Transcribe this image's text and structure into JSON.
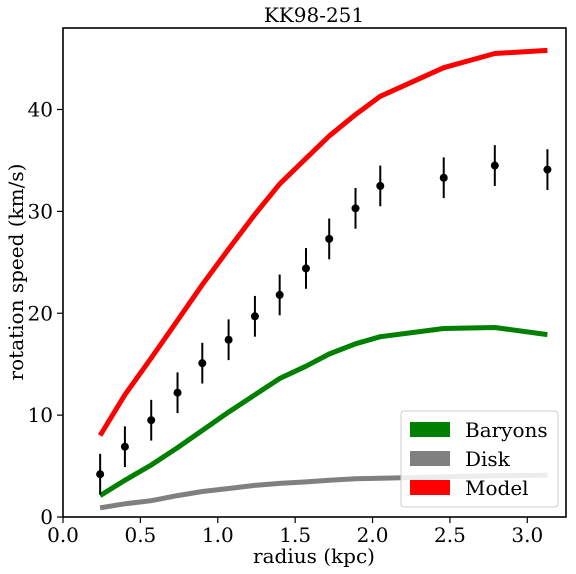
{
  "chart_data": {
    "type": "line",
    "title": "KK98-251",
    "xlabel": "radius (kpc)",
    "ylabel": "rotation speed (km/s)",
    "xlim": [
      0.0,
      3.25
    ],
    "ylim": [
      0,
      48
    ],
    "xticks": [
      "0.0",
      "0.5",
      "1.0",
      "1.5",
      "2.0",
      "2.5",
      "3.0"
    ],
    "yticks": [
      "0",
      "10",
      "20",
      "30",
      "40"
    ],
    "grid": false,
    "legend_position": "bottom-right",
    "series": [
      {
        "name": "Baryons",
        "color": "#008000",
        "x": [
          0.24,
          0.4,
          0.57,
          0.74,
          0.9,
          1.07,
          1.24,
          1.4,
          1.57,
          1.72,
          1.89,
          2.05,
          2.46,
          2.79,
          3.13
        ],
        "y": [
          2.1,
          3.6,
          5.1,
          6.8,
          8.5,
          10.3,
          12.0,
          13.6,
          14.8,
          16.0,
          17.0,
          17.7,
          18.5,
          18.6,
          17.9
        ]
      },
      {
        "name": "Disk",
        "color": "#808080",
        "x": [
          0.24,
          0.4,
          0.57,
          0.74,
          0.9,
          1.07,
          1.24,
          1.4,
          1.57,
          1.72,
          1.89,
          2.05,
          2.46,
          2.79,
          3.13
        ],
        "y": [
          0.9,
          1.3,
          1.6,
          2.1,
          2.5,
          2.8,
          3.1,
          3.3,
          3.45,
          3.6,
          3.75,
          3.8,
          3.95,
          4.05,
          4.1
        ]
      },
      {
        "name": "Model",
        "color": "#ff0000",
        "x": [
          0.24,
          0.4,
          0.57,
          0.74,
          0.9,
          1.07,
          1.24,
          1.4,
          1.57,
          1.72,
          1.89,
          2.05,
          2.46,
          2.79,
          3.13
        ],
        "y": [
          8.0,
          12.0,
          15.6,
          19.3,
          22.8,
          26.3,
          29.7,
          32.7,
          35.2,
          37.4,
          39.5,
          41.3,
          44.1,
          45.5,
          45.8
        ]
      }
    ],
    "observed": {
      "color": "#000000",
      "x": [
        0.24,
        0.4,
        0.57,
        0.74,
        0.9,
        1.07,
        1.24,
        1.4,
        1.57,
        1.72,
        1.89,
        2.05,
        2.46,
        2.79,
        3.13
      ],
      "y": [
        4.2,
        6.9,
        9.5,
        12.2,
        15.1,
        17.4,
        19.7,
        21.8,
        24.4,
        27.3,
        30.3,
        32.5,
        33.3,
        34.5,
        34.1
      ],
      "err": [
        2.0,
        2.0,
        2.0,
        2.0,
        2.0,
        2.0,
        2.0,
        2.0,
        2.0,
        2.0,
        2.0,
        2.0,
        2.0,
        2.0,
        2.0
      ]
    }
  }
}
